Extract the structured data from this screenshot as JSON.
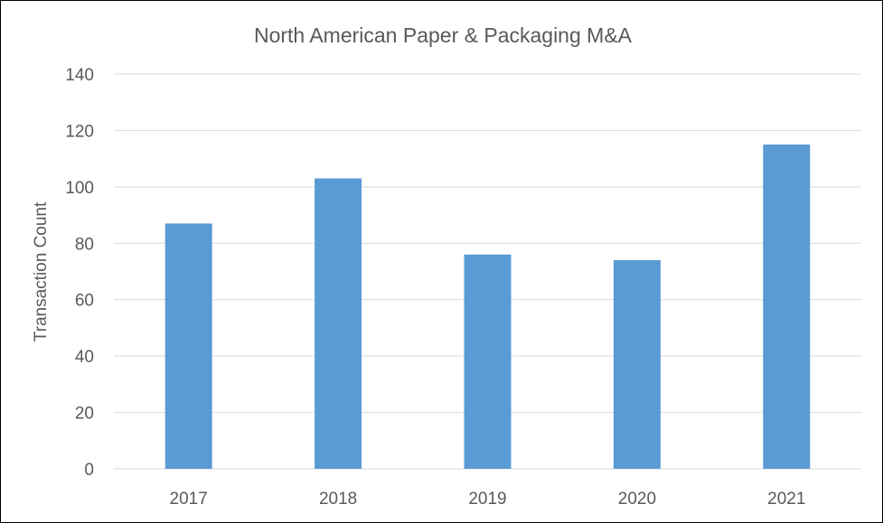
{
  "chart_data": {
    "type": "bar",
    "title": "North American Paper & Packaging M&A",
    "xlabel": "",
    "ylabel": "Transaction Count",
    "categories": [
      "2017",
      "2018",
      "2019",
      "2020",
      "2021"
    ],
    "values": [
      87,
      103,
      76,
      74,
      115
    ],
    "ylim": [
      0,
      140
    ],
    "yticks": [
      "0",
      "20",
      "40",
      "60",
      "80",
      "100",
      "120",
      "140"
    ],
    "grid": true,
    "legend": "none",
    "colors": {
      "bar": "#5b9bd5",
      "grid": "#d9d9d9",
      "text": "#595959"
    }
  }
}
